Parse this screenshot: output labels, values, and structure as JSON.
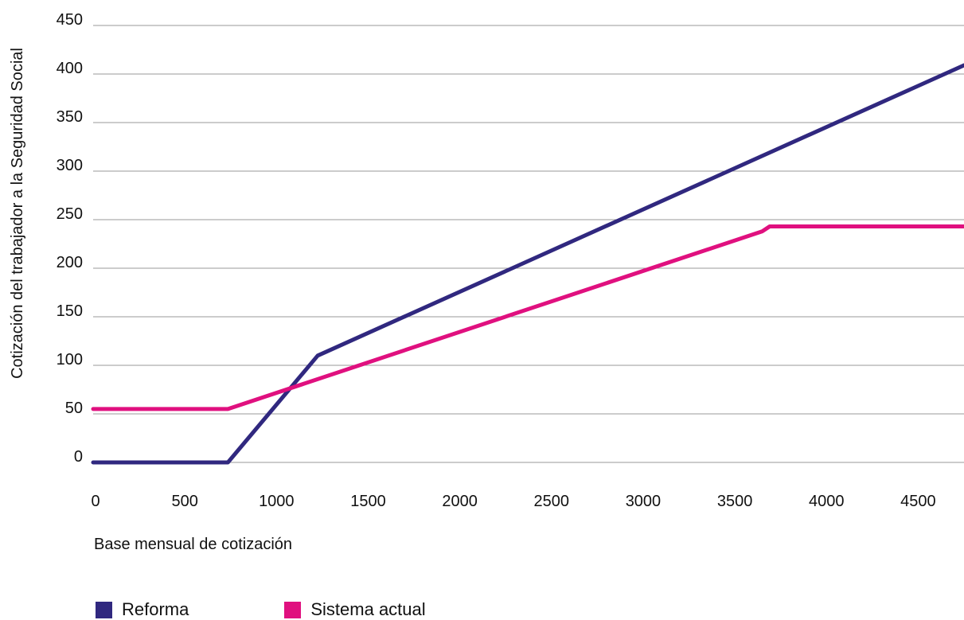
{
  "chart_data": {
    "type": "line",
    "xlabel": "Base mensual de cotización",
    "ylabel": "Cotización del trabajador a la Seguridad Social",
    "xlim": [
      0,
      4750
    ],
    "ylim": [
      0,
      450
    ],
    "xticks": [
      0,
      500,
      1000,
      1500,
      2000,
      2500,
      3000,
      3500,
      4000,
      4500
    ],
    "yticks": [
      0,
      50,
      100,
      150,
      200,
      250,
      300,
      350,
      400,
      450
    ],
    "grid": "horizontal",
    "legend_position": "bottom-left",
    "series": [
      {
        "name": "Reforma",
        "color": "#30287f",
        "x": [
          0,
          735,
          1225,
          4750
        ],
        "y": [
          0,
          0,
          110,
          409
        ]
      },
      {
        "name": "Sistema actual",
        "color": "#e0107f",
        "x": [
          0,
          735,
          3650,
          3690,
          4750
        ],
        "y": [
          55,
          55,
          238,
          243,
          243
        ]
      }
    ]
  }
}
